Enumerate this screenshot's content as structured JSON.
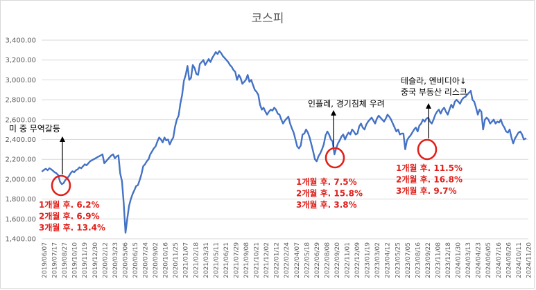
{
  "chart_data": {
    "type": "line",
    "title": "코스피",
    "xlabel": "",
    "ylabel": "",
    "ylim": [
      1400,
      3400
    ],
    "ytick_labels": [
      "1,400.00",
      "1,600.00",
      "1,800.00",
      "2,000.00",
      "2,200.00",
      "2,400.00",
      "2,600.00",
      "2,800.00",
      "3,000.00",
      "3,200.00",
      "3,400.00"
    ],
    "xtick_labels": [
      "2019/06/07",
      "2019/07/17",
      "2019/08/27",
      "2019/10/10",
      "2019/11/19",
      "2019/12/30",
      "2020/02/12",
      "2020/03/23",
      "2020/05/06",
      "2020/06/15",
      "2020/07/24",
      "2020/09/02",
      "2020/10/16",
      "2020/11/25",
      "2021/01/07",
      "2021/02/18",
      "2021/03/31",
      "2021/05/11",
      "2021/06/21",
      "2021/07/29",
      "2021/09/08",
      "2021/10/21",
      "2021/12/02",
      "2022/01/12",
      "2022/02/24",
      "2022/04/07",
      "2022/05/18",
      "2022/06/29",
      "2022/08/08",
      "2022/09/20",
      "2022/11/01",
      "2022/12/09",
      "2023/01/19",
      "2023/03/02",
      "2023/04/12",
      "2023/05/25",
      "2023/07/05",
      "2023/08/16",
      "2023/09/22",
      "2023/11/08",
      "2023/12/18",
      "2024/01/30",
      "2024/03/13",
      "2024/04/23",
      "2024/06/05",
      "2024/07/16",
      "2024/08/26",
      "2024/10/11",
      "2024/11/20"
    ],
    "grid": true,
    "color": "#4472c4",
    "series": [
      {
        "values": [
          2080,
          2095,
          2105,
          2090,
          2110,
          2100,
          2085,
          2070,
          2060,
          2040,
          1975,
          1950,
          1960,
          1990,
          2010,
          2030,
          2060,
          2080,
          2070,
          2090,
          2100,
          2120,
          2110,
          2130,
          2150,
          2140,
          2160,
          2180,
          2190,
          2200,
          2210,
          2220,
          2230,
          2240,
          2250,
          2160,
          2180,
          2200,
          2220,
          2240,
          2250,
          2210,
          2230,
          2240,
          2060,
          1980,
          1760,
          1460,
          1600,
          1730,
          1800,
          1850,
          1890,
          1930,
          1940,
          1990,
          2050,
          2130,
          2150,
          2180,
          2200,
          2250,
          2280,
          2310,
          2330,
          2380,
          2420,
          2400,
          2370,
          2420,
          2390,
          2400,
          2350,
          2390,
          2420,
          2530,
          2600,
          2640,
          2760,
          2850,
          2990,
          3050,
          3140,
          3000,
          3020,
          3150,
          3120,
          3060,
          3050,
          3160,
          3180,
          3200,
          3150,
          3180,
          3210,
          3180,
          3220,
          3250,
          3280,
          3260,
          3290,
          3270,
          3240,
          3220,
          3200,
          3180,
          3150,
          3130,
          3100,
          3080,
          3000,
          3050,
          3020,
          2960,
          2980,
          3000,
          3050,
          2980,
          3000,
          2950,
          2900,
          2880,
          2850,
          2750,
          2700,
          2720,
          2680,
          2650,
          2680,
          2700,
          2690,
          2720,
          2700,
          2660,
          2650,
          2600,
          2560,
          2590,
          2610,
          2630,
          2560,
          2510,
          2470,
          2400,
          2330,
          2310,
          2340,
          2450,
          2460,
          2500,
          2470,
          2420,
          2350,
          2280,
          2200,
          2180,
          2230,
          2260,
          2300,
          2350,
          2440,
          2480,
          2450,
          2400,
          2380,
          2250,
          2310,
          2360,
          2390,
          2430,
          2450,
          2400,
          2440,
          2470,
          2450,
          2500,
          2480,
          2450,
          2460,
          2530,
          2560,
          2520,
          2500,
          2550,
          2580,
          2600,
          2620,
          2590,
          2560,
          2610,
          2640,
          2620,
          2600,
          2580,
          2610,
          2650,
          2630,
          2600,
          2560,
          2520,
          2480,
          2500,
          2450,
          2460,
          2460,
          2300,
          2390,
          2420,
          2440,
          2470,
          2500,
          2520,
          2480,
          2540,
          2560,
          2600,
          2580,
          2610,
          2620,
          2580,
          2560,
          2600,
          2650,
          2680,
          2700,
          2660,
          2700,
          2720,
          2680,
          2650,
          2700,
          2750,
          2720,
          2780,
          2800,
          2780,
          2760,
          2800,
          2820,
          2830,
          2850,
          2870,
          2890,
          2800,
          2780,
          2720,
          2650,
          2700,
          2680,
          2500,
          2600,
          2620,
          2600,
          2560,
          2580,
          2600,
          2560,
          2580,
          2570,
          2600,
          2550,
          2520,
          2480,
          2470,
          2500,
          2420,
          2360,
          2410,
          2440,
          2470,
          2480,
          2450,
          2400,
          2410
        ]
      }
    ],
    "annotations": [
      {
        "lines": [
          "미 중 무역갈등"
        ]
      },
      {
        "lines": [
          "인플레, 경기침체 우려"
        ]
      },
      {
        "lines": [
          "테슬라, 엔비디아↓",
          "중국 부동산 리스크"
        ]
      }
    ],
    "callouts": [
      {
        "lines": [
          "1개월 후. 6.2%",
          "2개월 후. 6.9%",
          "3개월 후. 13.4%"
        ]
      },
      {
        "lines": [
          "1개월 후. 7.5%",
          "2개월 후. 15.8%",
          "3개월 후. 3.8%"
        ]
      },
      {
        "lines": [
          "1개월 후. 11.5%",
          "2개월 후. 16.8%",
          "3개월 후. 9.7%"
        ]
      }
    ],
    "marker_color": "#e0201b"
  }
}
